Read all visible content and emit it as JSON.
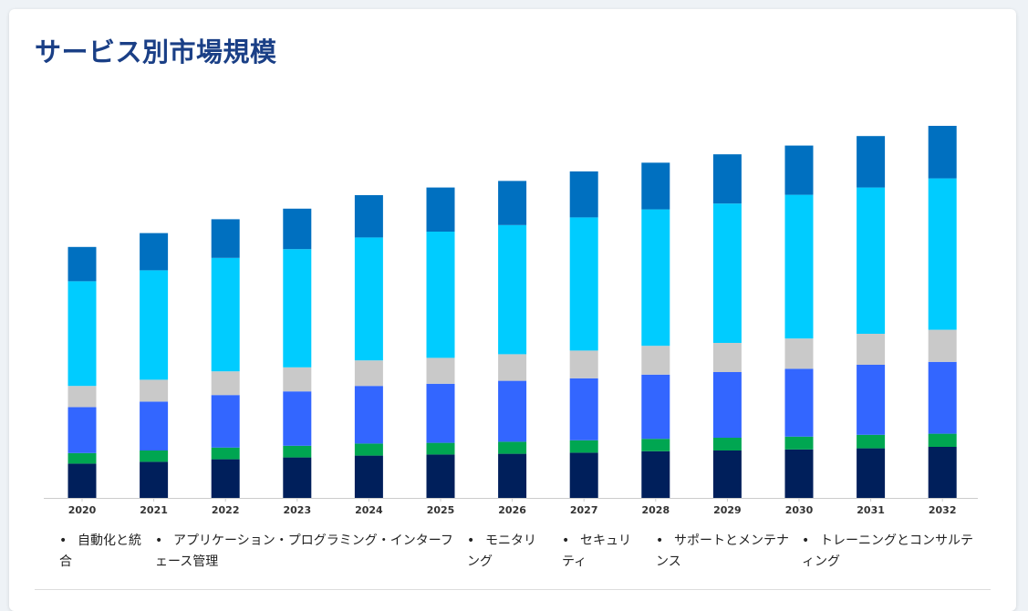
{
  "title": "サービス別市場規模",
  "chart_data": {
    "type": "bar",
    "stacked": true,
    "categories": [
      "2020",
      "2021",
      "2022",
      "2023",
      "2024",
      "2025",
      "2026",
      "2027",
      "2028",
      "2029",
      "2030",
      "2031",
      "2032"
    ],
    "series": [
      {
        "name": "自動化と統合",
        "color": "#001f5b",
        "values": [
          9.4,
          9.9,
          10.6,
          11.1,
          11.6,
          11.9,
          12.1,
          12.4,
          12.8,
          13.0,
          13.3,
          13.6,
          14.0
        ]
      },
      {
        "name": "アプリケーション・プログラミング・インターフェース管理",
        "color": "#00a651",
        "values": [
          2.9,
          3.1,
          3.2,
          3.2,
          3.3,
          3.2,
          3.3,
          3.4,
          3.4,
          3.5,
          3.5,
          3.7,
          3.6
        ]
      },
      {
        "name": "モニタリング",
        "color": "#3366ff",
        "values": [
          12.6,
          13.4,
          14.4,
          14.9,
          15.8,
          16.2,
          16.7,
          17.0,
          17.6,
          18.0,
          18.6,
          19.2,
          19.7
        ]
      },
      {
        "name": "セキュリティ",
        "color": "#c9c9c9",
        "values": [
          5.8,
          6.0,
          6.5,
          6.6,
          7.0,
          7.1,
          7.3,
          7.6,
          7.9,
          8.0,
          8.3,
          8.5,
          8.8
        ]
      },
      {
        "name": "サポートとメンテナンス",
        "color": "#00ccff",
        "values": [
          28.7,
          30.0,
          31.1,
          32.4,
          33.7,
          34.6,
          35.4,
          36.5,
          37.4,
          38.2,
          39.4,
          40.1,
          41.5
        ]
      },
      {
        "name": "トレーニングとコンサルティング",
        "color": "#0070c0",
        "values": [
          9.4,
          10.2,
          10.6,
          11.1,
          11.6,
          12.1,
          12.1,
          12.6,
          12.8,
          13.5,
          13.5,
          14.1,
          14.4
        ]
      }
    ],
    "ylim": [
      0,
      105
    ],
    "xlabel": "",
    "ylabel": "",
    "legend_position": "bottom",
    "grid": false
  },
  "legend": {
    "bullet": "•",
    "items": [
      "自動化と統合",
      "アプリケーション・プログラミング・インターフェース管理",
      "モニタリング",
      "セキュリティ",
      "サポートとメンテナンス",
      "トレーニングとコンサルティング"
    ]
  }
}
